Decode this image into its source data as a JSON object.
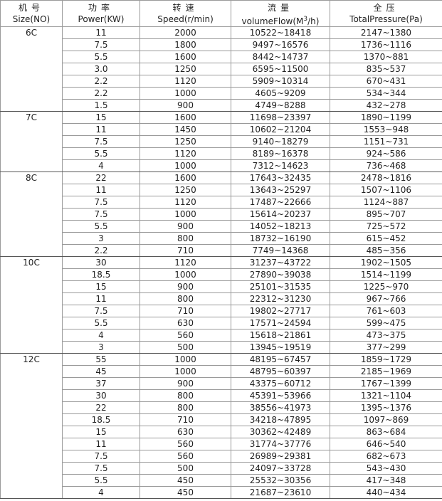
{
  "headers": [
    {
      "cn": "机号",
      "en": "Size(NO)"
    },
    {
      "cn": "功率",
      "en": "Power(KW)"
    },
    {
      "cn": "转速",
      "en": "Speed(r/min)"
    },
    {
      "cn": "流量",
      "en_pre": "volumeFlow(M",
      "en_sup": "3",
      "en_post": "/h)"
    },
    {
      "cn": "全压",
      "en": "TotalPressure(Pa)"
    }
  ],
  "groups": [
    {
      "size": "6C",
      "rows": [
        [
          "11",
          "2000",
          "10522~18418",
          "2147~1380"
        ],
        [
          "7.5",
          "1800",
          "9497~16576",
          "1736~1116"
        ],
        [
          "5.5",
          "1600",
          "8442~14737",
          "1370~881"
        ],
        [
          "3.0",
          "1250",
          "6595~11500",
          "835~537"
        ],
        [
          "2.2",
          "1120",
          "5909~10314",
          "670~431"
        ],
        [
          "2.2",
          "1000",
          "4605~9209",
          "534~344"
        ],
        [
          "1.5",
          "900",
          "4749~8288",
          "432~278"
        ]
      ]
    },
    {
      "size": "7C",
      "rows": [
        [
          "15",
          "1600",
          "11698~23397",
          "1890~1199"
        ],
        [
          "11",
          "1450",
          "10602~21204",
          "1553~948"
        ],
        [
          "7.5",
          "1250",
          "9140~18279",
          "1151~731"
        ],
        [
          "5.5",
          "1120",
          "8189~16378",
          "924~586"
        ],
        [
          "4",
          "1000",
          "7312~14623",
          "736~468"
        ]
      ]
    },
    {
      "size": "8C",
      "rows": [
        [
          "22",
          "1600",
          "17643~32435",
          "2478~1816"
        ],
        [
          "11",
          "1250",
          "13643~25297",
          "1507~1106"
        ],
        [
          "7.5",
          "1120",
          "17487~22666",
          "1124~887"
        ],
        [
          "7.5",
          "1000",
          "15614~20237",
          "895~707"
        ],
        [
          "5.5",
          "900",
          "14052~18213",
          "725~572"
        ],
        [
          "3",
          "800",
          "18732~16190",
          "615~452"
        ],
        [
          "2.2",
          "710",
          "7749~14368",
          "485~356"
        ]
      ]
    },
    {
      "size": "10C",
      "rows": [
        [
          "30",
          "1120",
          "31237~43722",
          "1902~1505"
        ],
        [
          "18.5",
          "1000",
          "27890~39038",
          "1514~1199"
        ],
        [
          "15",
          "900",
          "25101~31535",
          "1225~970"
        ],
        [
          "11",
          "800",
          "22312~31230",
          "967~766"
        ],
        [
          "7.5",
          "710",
          "19802~27717",
          "761~603"
        ],
        [
          "5.5",
          "630",
          "17571~24594",
          "599~475"
        ],
        [
          "4",
          "560",
          "15618~21861",
          "473~375"
        ],
        [
          "3",
          "500",
          "13945~19519",
          "377~299"
        ]
      ]
    },
    {
      "size": "12C",
      "rows": [
        [
          "55",
          "1000",
          "48195~67457",
          "1859~1729"
        ],
        [
          "45",
          "1000",
          "48795~60397",
          "2185~1969"
        ],
        [
          "37",
          "900",
          "43375~60712",
          "1767~1399"
        ],
        [
          "30",
          "800",
          "45391~53966",
          "1321~1104"
        ],
        [
          "22",
          "800",
          "38556~41973",
          "1395~1376"
        ],
        [
          "18.5",
          "710",
          "34218~47895",
          "1097~869"
        ],
        [
          "15",
          "630",
          "30362~42489",
          "863~684"
        ],
        [
          "11",
          "560",
          "31774~37776",
          "646~540"
        ],
        [
          "7.5",
          "560",
          "26989~29381",
          "682~673"
        ],
        [
          "7.5",
          "500",
          "24097~33728",
          "543~430"
        ],
        [
          "5.5",
          "450",
          "25532~30356",
          "417~348"
        ],
        [
          "4",
          "450",
          "21687~23610",
          "440~434"
        ]
      ]
    }
  ]
}
